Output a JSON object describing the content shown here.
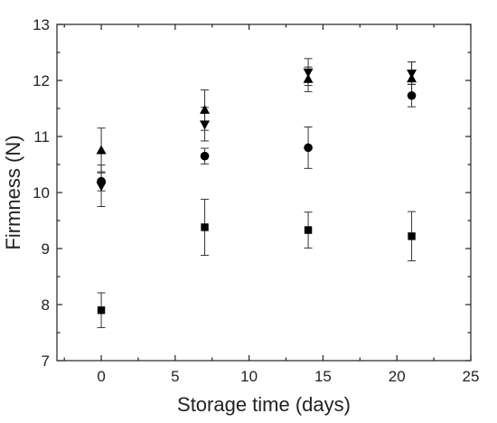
{
  "chart_data": {
    "type": "scatter",
    "title": "",
    "xlabel": "Storage time (days)",
    "ylabel": "Firmness (N)",
    "xlim": [
      -3,
      25
    ],
    "ylim": [
      7,
      13
    ],
    "xticks": [
      0,
      5,
      10,
      15,
      20,
      25
    ],
    "yticks": [
      7,
      8,
      9,
      10,
      11,
      12,
      13
    ],
    "grid": false,
    "legend": "none",
    "series": [
      {
        "marker": "square",
        "x": [
          0,
          7,
          14,
          21
        ],
        "y": [
          7.9,
          9.38,
          9.33,
          9.22
        ],
        "error": [
          0.31,
          0.5,
          0.32,
          0.44
        ]
      },
      {
        "marker": "circle",
        "x": [
          0,
          7,
          14,
          21
        ],
        "y": [
          10.2,
          10.65,
          10.8,
          11.73
        ],
        "error": [
          0.17,
          0.14,
          0.37,
          0.2
        ]
      },
      {
        "marker": "triangle-up",
        "x": [
          0,
          7,
          14,
          21
        ],
        "y": [
          10.75,
          11.47,
          12.02,
          12.03
        ],
        "error": [
          0.4,
          0.36,
          0.22,
          0.3
        ]
      },
      {
        "marker": "triangle-down",
        "x": [
          0,
          7,
          14,
          21
        ],
        "y": [
          10.12,
          11.22,
          12.15,
          12.13
        ],
        "error": [
          0.37,
          0.3,
          0.24,
          0.2
        ]
      }
    ]
  }
}
